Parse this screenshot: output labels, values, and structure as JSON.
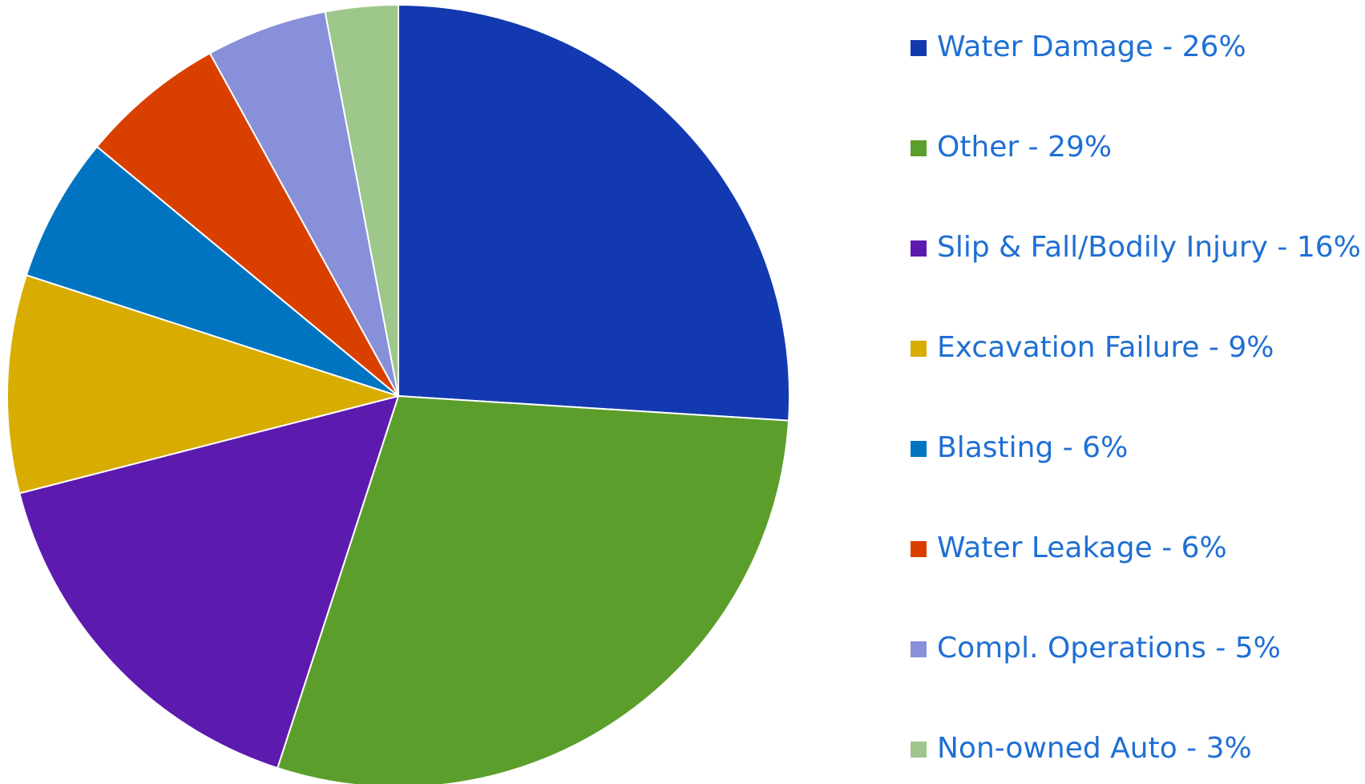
{
  "chart_data": {
    "type": "pie",
    "categories": [
      "Water Damage - 26%",
      "Other - 29%",
      "Slip & Fall/Bodily Injury - 16%",
      "Excavation Failure - 9%",
      "Blasting - 6%",
      "Water Leakage - 6%",
      "Compl. Operations - 5%",
      "Non-owned Auto - 3%"
    ],
    "values": [
      26,
      29,
      16,
      9,
      6,
      6,
      5,
      3
    ],
    "colors": [
      "#1239b0",
      "#5c9e2c",
      "#5d1aae",
      "#d8ac00",
      "#0074c1",
      "#d94000",
      "#8790d8",
      "#9dc78b"
    ],
    "legend": "right"
  }
}
